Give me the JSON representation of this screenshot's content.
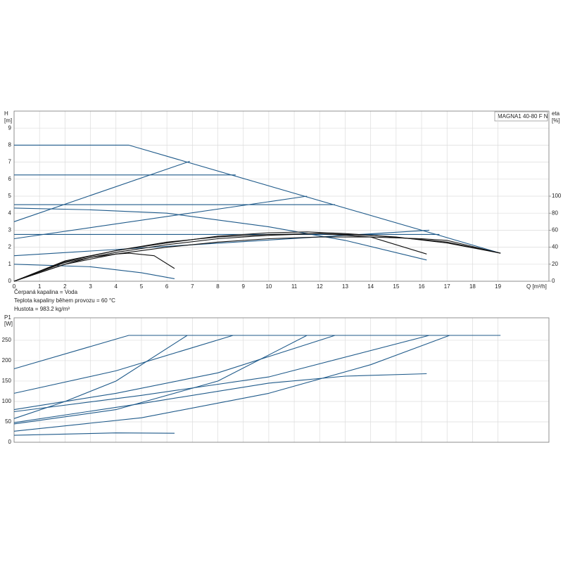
{
  "chart_data": [
    {
      "type": "line",
      "legend_title": "MAGNA1 40-80 F N",
      "ylabel": "H",
      "yunit": "[m]",
      "y2label": "eta",
      "y2unit": "[%]",
      "xlabel": "Q [m³/h]",
      "xlim": [
        0,
        21
      ],
      "ylim": [
        0,
        10
      ],
      "y2lim": [
        0,
        200
      ],
      "xticks": [
        0,
        1,
        2,
        3,
        4,
        5,
        6,
        7,
        8,
        9,
        10,
        11,
        12,
        13,
        14,
        15,
        16,
        17,
        18,
        19
      ],
      "yticks": [
        0,
        1,
        2,
        3,
        4,
        5,
        6,
        7,
        8,
        9
      ],
      "y2ticks": [
        0,
        20,
        40,
        60,
        80,
        100
      ],
      "grid": true,
      "xtick_labels": true,
      "series": [
        {
          "color": "#1f5a8a",
          "x": [
            0,
            4.5,
            19.1
          ],
          "values": [
            8,
            8,
            1.65
          ]
        },
        {
          "color": "#1f5a8a",
          "x": [
            0,
            6.9
          ],
          "values": [
            3.5,
            7.05
          ]
        },
        {
          "color": "#1f5a8a",
          "x": [
            0,
            8.7
          ],
          "values": [
            6.25,
            6.25
          ]
        },
        {
          "color": "#1f5a8a",
          "x": [
            0,
            12.6
          ],
          "values": [
            4.5,
            4.5
          ]
        },
        {
          "color": "#1f5a8a",
          "x": [
            0,
            11.5
          ],
          "values": [
            2.5,
            5.0
          ]
        },
        {
          "color": "#1f5a8a",
          "x": [
            0,
            16.7
          ],
          "values": [
            2.75,
            2.75
          ]
        },
        {
          "color": "#1f5a8a",
          "x": [
            0,
            16.3
          ],
          "values": [
            1.5,
            3.0
          ]
        },
        {
          "color": "#1f5a8a",
          "x": [
            0,
            3,
            6,
            10,
            13,
            16.2
          ],
          "values": [
            4.3,
            4.2,
            4.0,
            3.2,
            2.4,
            1.25
          ]
        },
        {
          "color": "#1f5a8a",
          "x": [
            0,
            3,
            5,
            6.3
          ],
          "values": [
            1.0,
            0.85,
            0.5,
            0.15
          ]
        },
        {
          "color": "#111111",
          "axis": "y2",
          "x": [
            0,
            2,
            4,
            6,
            8,
            10,
            12,
            14,
            16,
            17,
            19.1
          ],
          "values": [
            0,
            24,
            36,
            46,
            52,
            55,
            56,
            54,
            49,
            46,
            33
          ]
        },
        {
          "color": "#111111",
          "axis": "y2",
          "x": [
            0,
            2,
            4,
            6,
            8,
            10,
            12,
            14,
            16.2
          ],
          "values": [
            0,
            22,
            34,
            43,
            50,
            54,
            56,
            52,
            32
          ]
        },
        {
          "color": "#111111",
          "axis": "y2",
          "x": [
            0,
            1,
            2,
            3,
            4,
            4.5,
            5.5,
            6.3
          ],
          "values": [
            0,
            10,
            20,
            28,
            32,
            33,
            30,
            15
          ]
        },
        {
          "color": "#111111",
          "axis": "y2",
          "x": [
            0,
            2,
            4,
            6,
            8,
            10,
            12,
            14,
            16,
            17,
            19.1
          ],
          "values": [
            0,
            20,
            32,
            40,
            46,
            50,
            52,
            52,
            50,
            48,
            33
          ]
        },
        {
          "color": "#111111",
          "axis": "y2",
          "x": [
            0,
            2,
            4,
            6,
            8,
            10,
            11.5,
            13,
            15,
            17,
            19.1
          ],
          "values": [
            0,
            23,
            36,
            45,
            53,
            57,
            58,
            56,
            52,
            45,
            33
          ]
        }
      ]
    },
    {
      "type": "line",
      "ylabel": "P1",
      "yunit": "[W]",
      "xlim": [
        0,
        21
      ],
      "ylim": [
        0,
        305
      ],
      "xticks": [
        0,
        1,
        2,
        3,
        4,
        5,
        6,
        7,
        8,
        9,
        10,
        11,
        12,
        13,
        14,
        15,
        16,
        17,
        18,
        19
      ],
      "yticks": [
        0,
        50,
        100,
        150,
        200,
        250
      ],
      "grid": true,
      "xtick_labels": false,
      "series": [
        {
          "color": "#1f5a8a",
          "x": [
            0,
            4.5,
            19.1
          ],
          "values": [
            180,
            262,
            262
          ]
        },
        {
          "color": "#1f5a8a",
          "x": [
            0,
            4,
            8.6
          ],
          "values": [
            120,
            175,
            262
          ]
        },
        {
          "color": "#1f5a8a",
          "x": [
            0,
            2,
            4,
            6.8
          ],
          "values": [
            58,
            100,
            150,
            262
          ]
        },
        {
          "color": "#1f5a8a",
          "x": [
            0,
            4,
            8,
            12.6
          ],
          "values": [
            80,
            120,
            170,
            262
          ]
        },
        {
          "color": "#1f5a8a",
          "x": [
            0,
            4,
            8,
            11.5
          ],
          "values": [
            45,
            80,
            150,
            262
          ]
        },
        {
          "color": "#1f5a8a",
          "x": [
            0,
            5,
            10,
            16.3
          ],
          "values": [
            75,
            115,
            160,
            262
          ]
        },
        {
          "color": "#1f5a8a",
          "x": [
            0,
            5,
            10,
            14,
            17.1
          ],
          "values": [
            27,
            60,
            120,
            190,
            262
          ]
        },
        {
          "color": "#1f5a8a",
          "x": [
            0,
            5,
            10,
            13,
            16.2
          ],
          "values": [
            48,
            95,
            145,
            162,
            168
          ]
        },
        {
          "color": "#1f5a8a",
          "x": [
            0,
            4,
            6.3
          ],
          "values": [
            17,
            23,
            22
          ]
        }
      ]
    }
  ],
  "notes": [
    "Čerpaná kapalina = Voda",
    "Teplota kapaliny během provozu = 60 °C",
    "Hustota = 983.2 kg/m³"
  ]
}
